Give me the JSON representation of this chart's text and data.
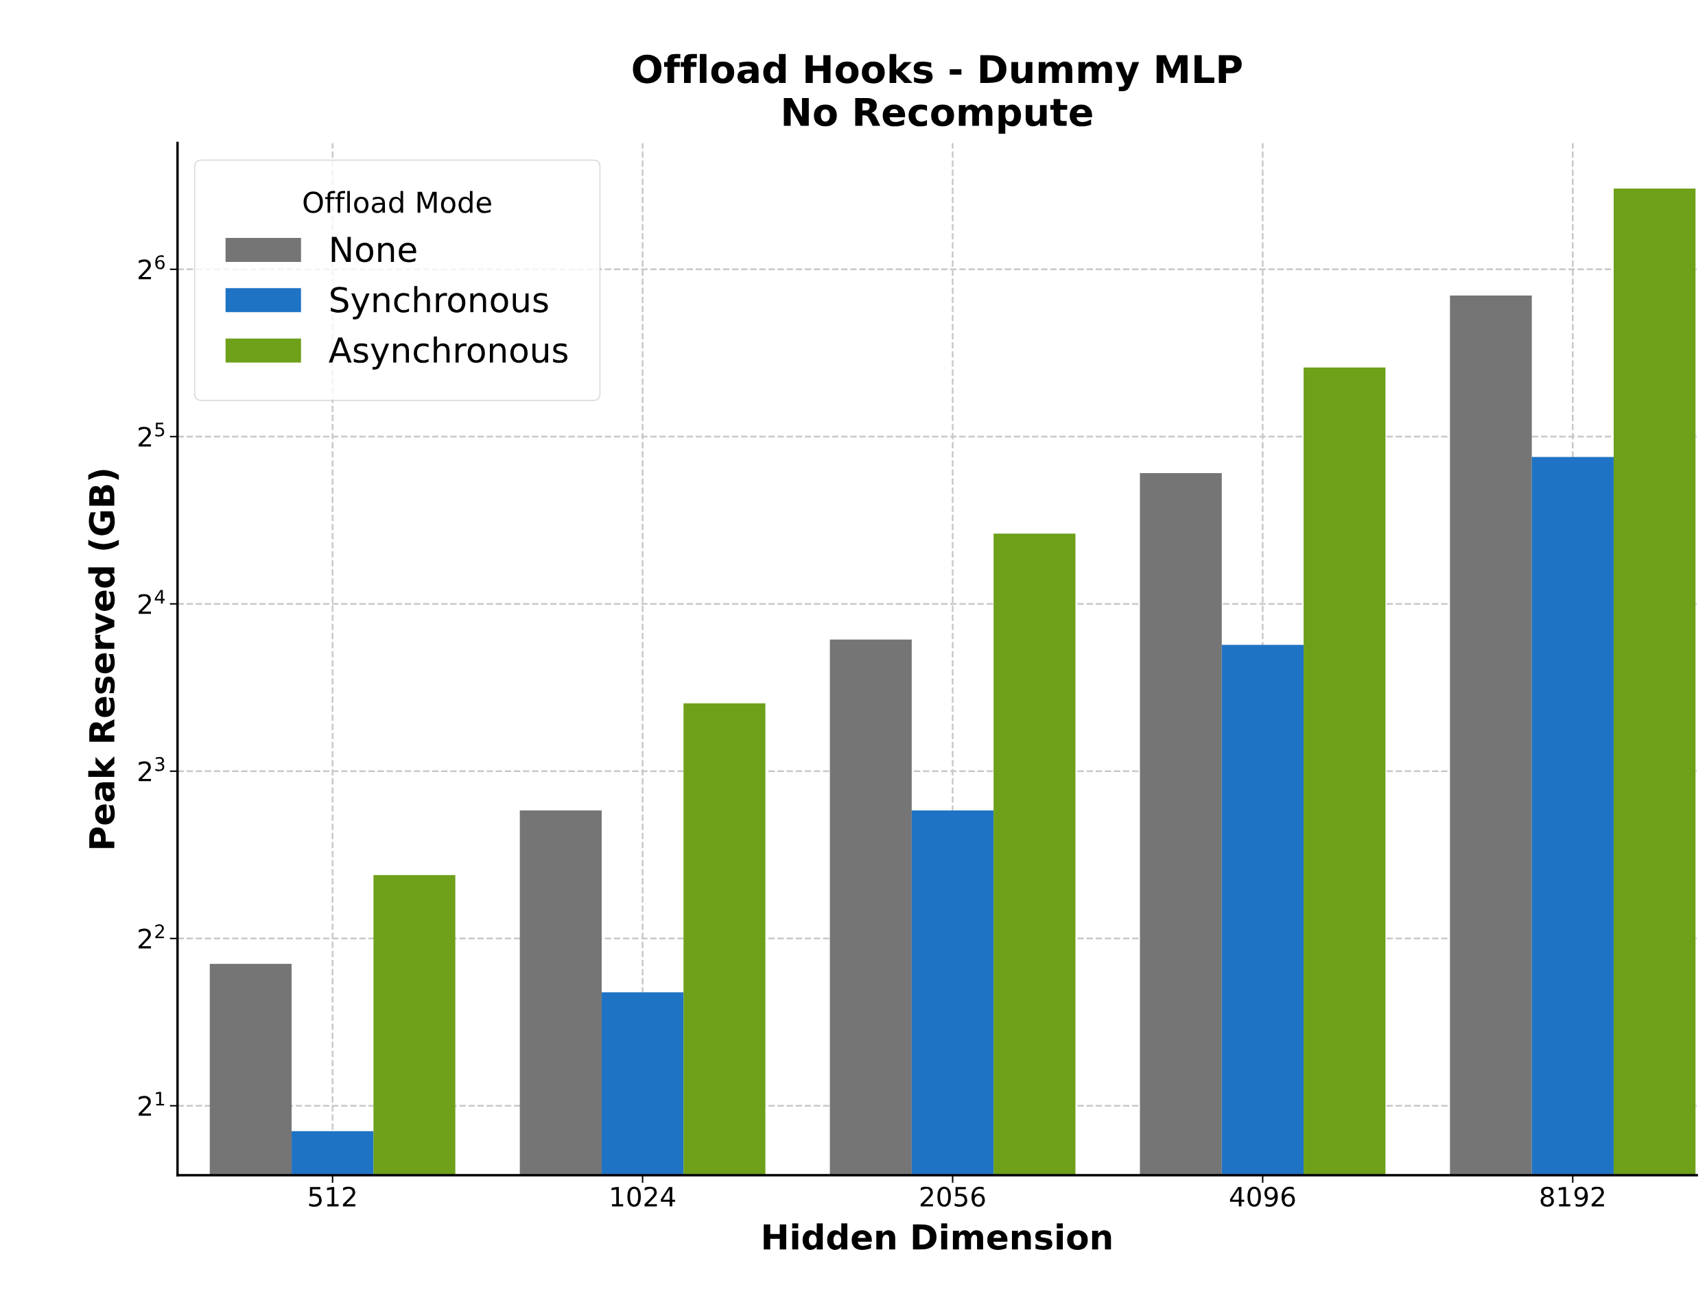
{
  "chart_data": {
    "type": "bar",
    "title": "Offload Hooks - Dummy MLP\nNo Recompute",
    "xlabel": "Hidden Dimension",
    "ylabel": "Peak Reserved (GB)",
    "legend_title": "Offload Mode",
    "categories": [
      "512",
      "1024",
      "2056",
      "4096",
      "8192"
    ],
    "series": [
      {
        "name": "None",
        "color": "#757575",
        "values": [
          3.6,
          6.8,
          13.8,
          27.5,
          57.4
        ]
      },
      {
        "name": "Synchronous",
        "color": "#1f73c4",
        "values": [
          1.8,
          3.2,
          6.8,
          13.5,
          29.4
        ]
      },
      {
        "name": "Asynchronous",
        "color": "#6ea01a",
        "values": [
          5.2,
          10.6,
          21.4,
          42.6,
          89.4
        ]
      }
    ],
    "log": "y",
    "ylim": [
      1.5,
      108
    ],
    "yticks": [
      {
        "value": 2,
        "label": "2$^{1}$"
      },
      {
        "value": 4,
        "label": "2$^{2}$"
      },
      {
        "value": 8,
        "label": "2$^{3}$"
      },
      {
        "value": 16,
        "label": "2$^{4}$"
      },
      {
        "value": 32,
        "label": "2$^{5}$"
      },
      {
        "value": 64,
        "label": "2$^{6}$"
      }
    ],
    "grid": true,
    "legend": "top left"
  }
}
